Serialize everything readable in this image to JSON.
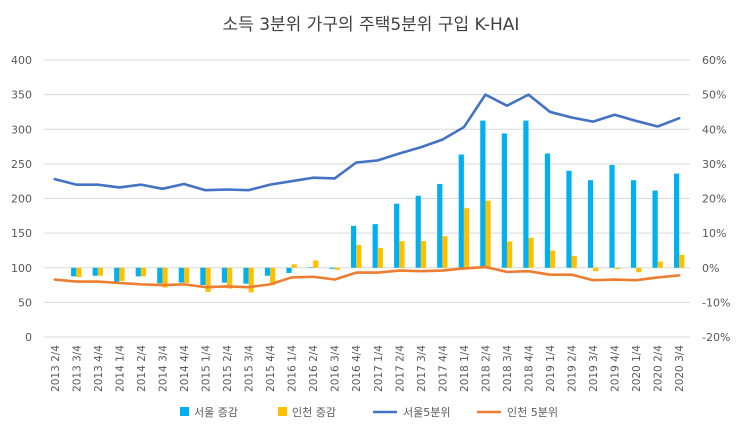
{
  "chart_data": {
    "type": "bar",
    "title": "소득 3분위 가구의 주택5분위 구입 K-HAI",
    "categories": [
      "2013 2/4",
      "2013 3/4",
      "2013 4/4",
      "2014 1/4",
      "2014 2/4",
      "2014 3/4",
      "2014 4/4",
      "2015 1/4",
      "2015 2/4",
      "2015 3/4",
      "2015 4/4",
      "2016 1/4",
      "2016 2/4",
      "2016 3/4",
      "2016 4/4",
      "2017 1/4",
      "2017 2/4",
      "2017 3/4",
      "2017 4/4",
      "2018 1/4",
      "2018 2/4",
      "2018 3/4",
      "2018 4/4",
      "2019 1/4",
      "2019 2/4",
      "2019 3/4",
      "2019 4/4",
      "2020 1/4",
      "2020 2/4",
      "2020 3/4"
    ],
    "ylim_left": [
      0,
      400
    ],
    "yticks_left": [
      "0",
      "50",
      "100",
      "150",
      "200",
      "250",
      "300",
      "350",
      "400"
    ],
    "ylim_right": [
      -20,
      60
    ],
    "yticks_right": [
      "-20%",
      "-10%",
      "0%",
      "10%",
      "20%",
      "30%",
      "40%",
      "50%",
      "60%"
    ],
    "grid": true,
    "legend_position": "bottom",
    "bar_series": [
      {
        "name": "서울 증감",
        "color": "#00B0F0",
        "values": [
          null,
          -2.5,
          -2.3,
          -4,
          -2.5,
          -4.5,
          -4.3,
          -5,
          -4.3,
          -4.6,
          -2.3,
          -1.5,
          0.1,
          -0.3,
          12.1,
          12.6,
          18.5,
          20.8,
          24.2,
          32.7,
          42.5,
          38.8,
          42.5,
          33,
          28,
          25.3,
          29.7,
          25.3,
          22.3,
          27.2
        ]
      },
      {
        "name": "인천 증감",
        "color": "#FFC000",
        "values": [
          null,
          -2.7,
          -2.3,
          -3.8,
          -2.5,
          -5.7,
          -4.4,
          -7,
          -6,
          -7.1,
          -5,
          1,
          2.1,
          -0.6,
          6.6,
          5.7,
          7.7,
          7.7,
          9.1,
          17.2,
          19.4,
          7.6,
          8.7,
          5,
          3.4,
          -1,
          -0.4,
          -1.3,
          1.8,
          3.7
        ]
      }
    ],
    "line_series": [
      {
        "name": "서울5분위",
        "color": "#4472C4",
        "values": [
          228,
          220,
          220,
          216,
          220,
          214,
          221,
          212,
          213,
          212,
          220,
          225,
          230,
          229,
          252,
          255,
          265,
          274,
          285,
          303,
          350,
          334,
          350,
          325,
          317,
          311,
          321,
          312,
          304,
          316
        ]
      },
      {
        "name": "인천 5분위",
        "color": "#ED7D31",
        "values": [
          83,
          80,
          80,
          78,
          76,
          75,
          76,
          72,
          73,
          72,
          76,
          86,
          87,
          83,
          93,
          93,
          96,
          95,
          96,
          99,
          101,
          94,
          95,
          90,
          90,
          82,
          83,
          82,
          86,
          89
        ]
      }
    ]
  }
}
